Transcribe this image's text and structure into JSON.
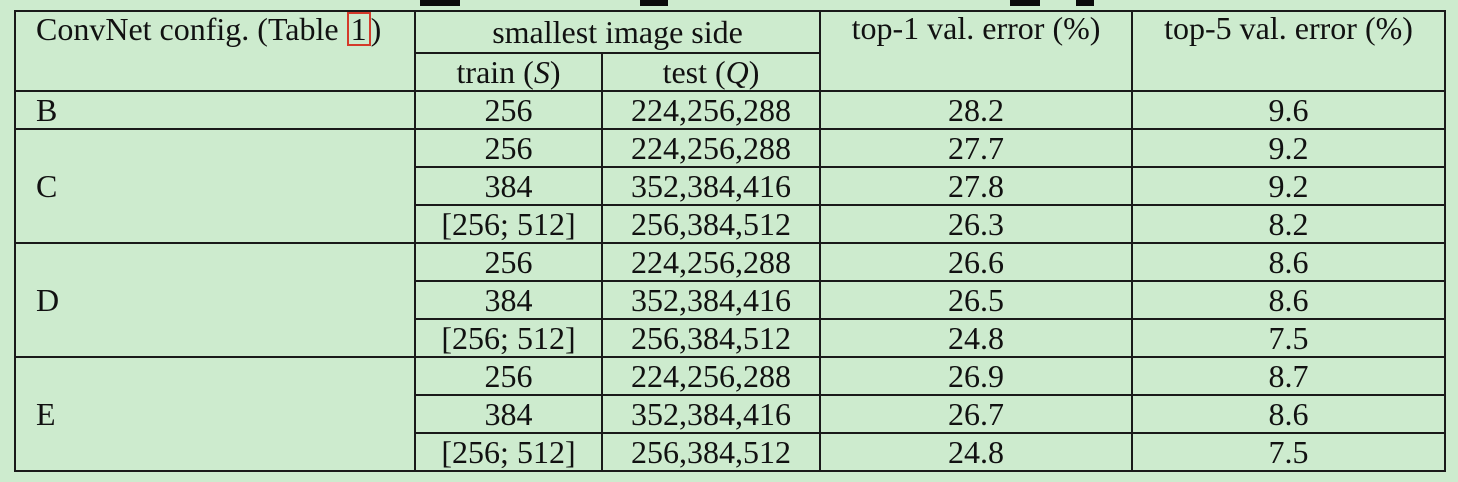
{
  "header": {
    "config_prefix": "ConvNet config. (Table ",
    "config_ref": "1",
    "config_suffix": ")",
    "image_side": "smallest image side",
    "train_label": "train (",
    "train_var": "S",
    "test_label": "test (",
    "test_var": "Q",
    "close_paren": ")",
    "top1": "top-1 val. error (%)",
    "top5": "top-5 val. error (%)"
  },
  "groups": [
    {
      "config": "B",
      "rows": [
        {
          "train": "256",
          "test": "224,256,288",
          "top1": "28.2",
          "top5": "9.6",
          "bold": false
        }
      ]
    },
    {
      "config": "C",
      "rows": [
        {
          "train": "256",
          "test": "224,256,288",
          "top1": "27.7",
          "top5": "9.2",
          "bold": false
        },
        {
          "train": "384",
          "test": "352,384,416",
          "top1": "27.8",
          "top5": "9.2",
          "bold": false
        },
        {
          "train": "[256; 512]",
          "test": "256,384,512",
          "top1": "26.3",
          "top5": "8.2",
          "bold": false
        }
      ]
    },
    {
      "config": "D",
      "rows": [
        {
          "train": "256",
          "test": "224,256,288",
          "top1": "26.6",
          "top5": "8.6",
          "bold": false
        },
        {
          "train": "384",
          "test": "352,384,416",
          "top1": "26.5",
          "top5": "8.6",
          "bold": false
        },
        {
          "train": "[256; 512]",
          "test": "256,384,512",
          "top1": "24.8",
          "top5": "7.5",
          "bold": true
        }
      ]
    },
    {
      "config": "E",
      "rows": [
        {
          "train": "256",
          "test": "224,256,288",
          "top1": "26.9",
          "top5": "8.7",
          "bold": false
        },
        {
          "train": "384",
          "test": "352,384,416",
          "top1": "26.7",
          "top5": "8.6",
          "bold": false
        },
        {
          "train": "[256; 512]",
          "test": "256,384,512",
          "top1": "24.8",
          "top5": "7.5",
          "bold": true
        }
      ]
    }
  ],
  "colors": {
    "background": "#cdebce",
    "border": "#1a1a1a",
    "ref_box": "#d43a2a"
  }
}
